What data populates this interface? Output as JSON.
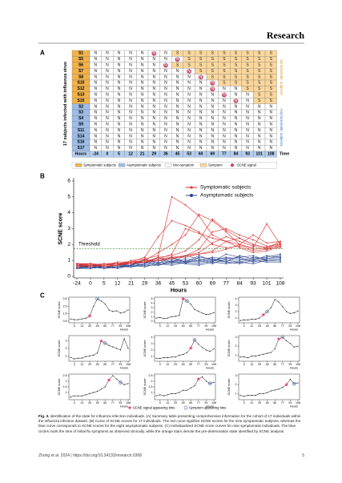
{
  "header": {
    "journal": "Research"
  },
  "panel_a": {
    "label": "A",
    "y_label": "17 subjects infected with influenza virus",
    "time_label": "Time",
    "hours_label": "Hours",
    "hours": [
      -24,
      0,
      5,
      12,
      21,
      29,
      36,
      45,
      53,
      60,
      69,
      77,
      84,
      93,
      101,
      108
    ],
    "groups": [
      {
        "label": "Symptomatic subjects",
        "rows": [
          {
            "name": "S1",
            "signal": 5,
            "cells": [
              "N",
              "N",
              "N",
              "N",
              "N",
              "N",
              "N",
              "S",
              "S",
              "S",
              "S",
              "S",
              "S",
              "S",
              "S",
              "S"
            ]
          },
          {
            "name": "S5",
            "signal": 7,
            "cells": [
              "N",
              "N",
              "N",
              "N",
              "N",
              "N",
              "N",
              "N",
              "S",
              "S",
              "S",
              "S",
              "S",
              "S",
              "S",
              "S"
            ]
          },
          {
            "name": "S6",
            "signal": 6,
            "cells": [
              "N",
              "N",
              "N",
              "N",
              "N",
              "N",
              "N",
              "S",
              "S",
              "S",
              "S",
              "S",
              "S",
              "S",
              "S",
              "S"
            ]
          },
          {
            "name": "S7",
            "signal": 8,
            "cells": [
              "N",
              "N",
              "N",
              "N",
              "N",
              "N",
              "N",
              "N",
              "N",
              "S",
              "S",
              "S",
              "S",
              "S",
              "S",
              "S"
            ]
          },
          {
            "name": "S8",
            "signal": 9,
            "cells": [
              "N",
              "N",
              "N",
              "N",
              "N",
              "N",
              "N",
              "N",
              "N",
              "N",
              "S",
              "S",
              "S",
              "S",
              "S",
              "S"
            ]
          },
          {
            "name": "S10",
            "signal": 10,
            "cells": [
              "N",
              "N",
              "N",
              "N",
              "N",
              "N",
              "N",
              "N",
              "N",
              "N",
              "N",
              "S",
              "S",
              "S",
              "S",
              "S"
            ]
          },
          {
            "name": "S12",
            "signal": 10,
            "cells": [
              "N",
              "N",
              "N",
              "N",
              "N",
              "N",
              "N",
              "N",
              "N",
              "N",
              "N",
              "N",
              "N",
              "S",
              "S",
              "S"
            ]
          },
          {
            "name": "S13",
            "signal": 11,
            "cells": [
              "N",
              "N",
              "N",
              "N",
              "N",
              "N",
              "N",
              "N",
              "N",
              "N",
              "N",
              "N",
              "N",
              "N",
              "S",
              "S"
            ]
          },
          {
            "name": "S15",
            "signal": 12,
            "cells": [
              "N",
              "N",
              "N",
              "N",
              "N",
              "N",
              "N",
              "N",
              "N",
              "N",
              "N",
              "N",
              "N",
              "N",
              "S",
              "S"
            ]
          }
        ]
      },
      {
        "label": "Asymptomatic subjects",
        "rows": [
          {
            "name": "S2",
            "cells": [
              "N",
              "N",
              "N",
              "N",
              "N",
              "N",
              "N",
              "N",
              "N",
              "N",
              "N",
              "N",
              "N",
              "N",
              "N",
              "N"
            ]
          },
          {
            "name": "S3",
            "cells": [
              "N",
              "N",
              "N",
              "N",
              "N",
              "N",
              "N",
              "N",
              "N",
              "N",
              "N",
              "N",
              "N",
              "N",
              "N",
              "N"
            ]
          },
          {
            "name": "S4",
            "cells": [
              "N",
              "N",
              "N",
              "N",
              "N",
              "N",
              "N",
              "N",
              "N",
              "N",
              "N",
              "N",
              "N",
              "N",
              "N",
              "N"
            ]
          },
          {
            "name": "S9",
            "cells": [
              "N",
              "N",
              "N",
              "N",
              "N",
              "N",
              "N",
              "N",
              "N",
              "N",
              "N",
              "N",
              "N",
              "N",
              "N",
              "N"
            ]
          },
          {
            "name": "S11",
            "cells": [
              "N",
              "N",
              "N",
              "N",
              "N",
              "N",
              "N",
              "N",
              "N",
              "N",
              "N",
              "N",
              "N",
              "N",
              "N",
              "N"
            ]
          },
          {
            "name": "S14",
            "cells": [
              "N",
              "N",
              "N",
              "N",
              "N",
              "N",
              "N",
              "N",
              "N",
              "N",
              "N",
              "N",
              "N",
              "N",
              "N",
              "N"
            ]
          },
          {
            "name": "S16",
            "cells": [
              "N",
              "N",
              "N",
              "N",
              "N",
              "N",
              "N",
              "N",
              "N",
              "N",
              "N",
              "N",
              "N",
              "N",
              "N",
              "N"
            ]
          },
          {
            "name": "S17",
            "cells": [
              "N",
              "N",
              "N",
              "N",
              "N",
              "N",
              "N",
              "N",
              "N",
              "N",
              "N",
              "N",
              "N",
              "N",
              "N",
              "N"
            ]
          }
        ]
      }
    ],
    "legend": [
      "Symptomatic subjects",
      "Asymptomatic subjects",
      "Non-symptom",
      "Symptom",
      "SCNE signal"
    ]
  },
  "chart_data": {
    "type": "line",
    "label": "B",
    "ylabel": "SCNE score",
    "xlabel": "Hours",
    "categories": [
      -24,
      0,
      5,
      12,
      21,
      29,
      36,
      45,
      53,
      60,
      69,
      77,
      84,
      93,
      101,
      108
    ],
    "ylim": [
      0,
      6
    ],
    "yticks": [
      0,
      1,
      2,
      3,
      4,
      5,
      6
    ],
    "threshold": {
      "value": 1.75,
      "label": "Threshold",
      "color": "#2e8b2e"
    },
    "series": [
      {
        "name": "Symptomatic subjects",
        "color": "#d8312f",
        "lines": [
          [
            0.8,
            0.7,
            0.7,
            0.8,
            0.9,
            1.2,
            2.5,
            3.5,
            3.2,
            2.8,
            2.0,
            1.8,
            1.9,
            1.6,
            1.7,
            2.0
          ],
          [
            0.7,
            0.8,
            0.6,
            0.7,
            1.0,
            1.1,
            1.3,
            5.0,
            4.5,
            3.8,
            2.6,
            2.2,
            1.8,
            1.5,
            1.6,
            1.9
          ],
          [
            0.6,
            0.7,
            0.7,
            0.8,
            0.8,
            1.0,
            1.5,
            2.0,
            2.6,
            3.9,
            3.5,
            2.8,
            2.0,
            1.7,
            1.8,
            2.1
          ],
          [
            0.8,
            0.6,
            0.7,
            0.7,
            0.9,
            1.0,
            1.1,
            1.4,
            3.0,
            2.7,
            2.4,
            2.2,
            2.0,
            1.8,
            3.3,
            2.0
          ],
          [
            0.7,
            0.7,
            0.8,
            0.8,
            0.9,
            0.9,
            1.2,
            1.3,
            1.6,
            2.3,
            3.6,
            2.9,
            2.4,
            2.0,
            1.8,
            2.2
          ],
          [
            0.8,
            0.8,
            0.7,
            0.9,
            0.9,
            1.0,
            1.1,
            1.2,
            1.3,
            1.7,
            2.8,
            3.0,
            2.6,
            2.3,
            1.9,
            2.0
          ],
          [
            0.6,
            0.7,
            0.7,
            0.7,
            0.8,
            0.9,
            1.0,
            1.1,
            1.3,
            1.5,
            2.1,
            2.5,
            2.2,
            1.9,
            1.7,
            1.8
          ],
          [
            0.7,
            0.8,
            0.7,
            0.8,
            0.9,
            0.9,
            1.0,
            1.2,
            1.2,
            1.4,
            1.6,
            2.2,
            2.4,
            2.0,
            1.8,
            1.9
          ],
          [
            0.8,
            0.7,
            0.8,
            0.8,
            0.8,
            1.0,
            1.0,
            1.1,
            1.3,
            1.4,
            1.5,
            1.7,
            2.0,
            2.6,
            2.1,
            2.2
          ]
        ]
      },
      {
        "name": "Asymptomatic subjects",
        "color": "#26428b",
        "lines": [
          [
            0.6,
            0.5,
            0.6,
            0.7,
            0.8,
            0.9,
            1.0,
            0.9,
            1.1,
            1.0,
            1.2,
            1.1,
            1.0,
            1.2,
            1.1,
            1.3
          ],
          [
            0.5,
            0.6,
            0.5,
            0.6,
            0.7,
            1.1,
            0.8,
            1.2,
            0.9,
            1.3,
            1.0,
            1.2,
            1.1,
            1.0,
            1.3,
            1.2
          ],
          [
            0.7,
            0.6,
            0.7,
            0.8,
            0.6,
            0.8,
            1.2,
            0.9,
            1.3,
            1.1,
            0.9,
            1.4,
            1.2,
            1.3,
            1.0,
            1.1
          ],
          [
            0.6,
            0.7,
            0.6,
            0.5,
            0.7,
            0.9,
            0.7,
            1.0,
            0.8,
            1.2,
            1.1,
            0.9,
            1.3,
            1.1,
            1.2,
            1.4
          ],
          [
            0.5,
            0.5,
            0.6,
            0.6,
            0.8,
            0.7,
            0.9,
            0.8,
            1.0,
            0.9,
            1.1,
            1.0,
            0.9,
            1.1,
            1.0,
            1.0
          ],
          [
            0.7,
            0.6,
            0.6,
            0.7,
            0.6,
            0.8,
            1.0,
            1.1,
            0.9,
            1.0,
            0.8,
            1.1,
            1.2,
            0.9,
            1.1,
            1.2
          ],
          [
            0.6,
            0.6,
            0.5,
            0.6,
            0.7,
            0.6,
            0.8,
            0.7,
            0.9,
            0.8,
            1.0,
            0.9,
            0.8,
            1.0,
            0.9,
            0.9
          ],
          [
            0.5,
            0.7,
            0.6,
            0.6,
            0.6,
            0.7,
            0.7,
            0.9,
            0.8,
            0.7,
            0.9,
            0.8,
            0.9,
            0.8,
            1.0,
            1.1
          ]
        ]
      }
    ]
  },
  "panel_c": {
    "label": "C",
    "ylabel": "SCNE score",
    "xlabel": "Hours",
    "xticks": [
      null,
      0,
      null,
      12,
      null,
      29,
      null,
      45,
      null,
      60,
      null,
      77,
      null,
      93,
      null,
      108
    ],
    "charts": [
      {
        "ylim": [
          0.5,
          3.5
        ],
        "yticks": [
          0.5,
          1.5,
          2.5,
          3.5
        ]
      },
      {
        "ylim": [
          0,
          5
        ],
        "yticks": [
          0,
          1,
          2,
          3,
          4,
          5
        ]
      },
      {
        "ylim": [
          0.5,
          4
        ],
        "yticks": [
          1,
          2,
          3,
          4
        ]
      },
      {
        "ylim": [
          0.5,
          3.5
        ],
        "yticks": [
          1,
          2,
          3
        ]
      },
      {
        "ylim": [
          0.5,
          4
        ],
        "yticks": [
          1,
          2,
          3,
          4
        ]
      },
      {
        "ylim": [
          0.5,
          3
        ],
        "yticks": [
          1,
          2,
          3
        ]
      },
      {
        "ylim": [
          0.5,
          2.5
        ],
        "yticks": [
          1,
          1.5,
          2,
          2.5
        ]
      },
      {
        "ylim": [
          0.5,
          2.5
        ],
        "yticks": [
          1,
          1.5,
          2,
          2.5
        ]
      },
      {
        "ylim": [
          0.5,
          3
        ],
        "yticks": [
          1,
          2,
          3
        ]
      }
    ],
    "legend": [
      "SCNE signal appearing time",
      "Symptom appearing time"
    ]
  },
  "caption": {
    "label": "Fig. 3.",
    "text": "Identification of the state for influenza infection individuals. (A) Summary table presenting comprehensive information for the cohort of 17 individuals within the influenza infection dataset. (B) Curve of SCNE scores for 17 individuals. The red curve signifies SCNE scores for the nine symptomatic subjects, whereas the blue curve corresponds to SCNE scores for the eight asymptomatic subjects. (C) Individualized SCNE score curves for nine symptomatic individuals. The blue circles mark the time of initial flu symptoms as observed clinically, while the orange stars denote the pre-deterioration state identified by SCNE analysis."
  },
  "footer": {
    "citation": "Zhong et al. 2024 | https://doi.org/10.34133/research.0368",
    "page": "5"
  }
}
